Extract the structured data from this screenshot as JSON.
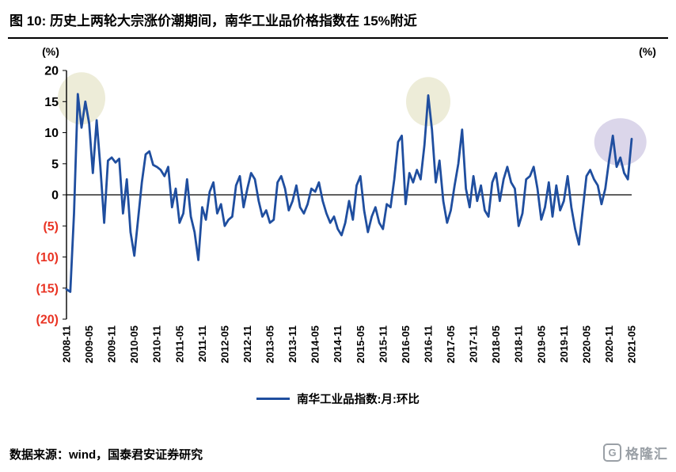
{
  "page": {
    "title": "图 10:  历史上两轮大宗涨价潮期间，南华工业品价格指数在 15%附近",
    "footer_source": "数据来源：wind，国泰君安证券研究",
    "logo": {
      "letter": "G",
      "text": "格隆汇"
    }
  },
  "legend": {
    "label": "南华工业品指数:月:环比"
  },
  "colors": {
    "line": "#1F4E9F",
    "negative_label": "#E93323",
    "positive_label": "#000000",
    "axis": "#000000",
    "highlight_beige": "#EDECD8",
    "highlight_purple": "#DBD6EA"
  },
  "chart_data": {
    "type": "line",
    "title": "历史上两轮大宗涨价潮期间，南华工业品价格指数在 15%附近",
    "unit_left": "(%)",
    "unit_right": "(%)",
    "freq": "monthly",
    "start_month": "2008-11",
    "end_month": "2021-05",
    "n_points": 151,
    "ylim": [
      -20,
      20
    ],
    "grid": false,
    "yticks": [
      {
        "value": 20,
        "label": "20"
      },
      {
        "value": 15,
        "label": "15"
      },
      {
        "value": 10,
        "label": "10"
      },
      {
        "value": 5,
        "label": "5"
      },
      {
        "value": 0,
        "label": "0"
      },
      {
        "value": -5,
        "label": "(5)"
      },
      {
        "value": -10,
        "label": "(10)"
      },
      {
        "value": -15,
        "label": "(15)"
      },
      {
        "value": -20,
        "label": "(20)"
      }
    ],
    "x_tick_every_months": 6,
    "x_tick_labels": [
      "2008-11",
      "2009-05",
      "2009-11",
      "2010-05",
      "2010-11",
      "2011-05",
      "2011-11",
      "2012-05",
      "2012-11",
      "2013-05",
      "2013-11",
      "2014-05",
      "2014-11",
      "2015-05",
      "2015-11",
      "2016-05",
      "2016-11",
      "2017-05",
      "2017-11",
      "2018-05",
      "2018-11",
      "2019-05",
      "2019-11",
      "2020-05",
      "2020-11",
      "2021-05"
    ],
    "series": [
      {
        "name": "南华工业品指数:月:环比",
        "color": "#1F4E9F",
        "values": [
          -15.2,
          -15.6,
          -3,
          16.2,
          10.8,
          15,
          11.5,
          3.5,
          12,
          4.5,
          -4.5,
          5.5,
          6,
          5.2,
          5.8,
          -3,
          2.5,
          -6,
          -9.8,
          -4,
          2,
          6.5,
          7,
          4.8,
          4.5,
          4,
          3,
          4.5,
          -2,
          1,
          -4.5,
          -3,
          2.5,
          -3.5,
          -6,
          -10.5,
          -2,
          -4,
          0.5,
          2,
          -3,
          -1.5,
          -5,
          -4,
          -3.5,
          1.5,
          3,
          -2,
          1,
          3.5,
          2.5,
          -1,
          -3.5,
          -2.5,
          -4.5,
          -4,
          2,
          3,
          1,
          -2.5,
          -1,
          1.5,
          -2,
          -3,
          -1.5,
          1,
          0.5,
          2,
          -1,
          -3,
          -4.5,
          -3.5,
          -5.5,
          -6.5,
          -4.5,
          -1,
          -4,
          1.5,
          3,
          -2.5,
          -6,
          -3.5,
          -2,
          -4.5,
          -5.5,
          -1.5,
          -2,
          2.5,
          8.5,
          9.5,
          -1.5,
          3.5,
          2,
          4,
          2.5,
          8,
          16,
          10.5,
          2,
          5.5,
          -1,
          -4.5,
          -2.5,
          1.5,
          5,
          10.5,
          1,
          -2,
          3,
          -1,
          1.5,
          -2.5,
          -3.5,
          2,
          3.5,
          -1,
          2.5,
          4.5,
          2,
          1,
          -5,
          -3,
          2.5,
          3,
          4.5,
          1,
          -4,
          -2,
          2,
          -3.5,
          1.5,
          -2.5,
          -1,
          3,
          -2,
          -5.5,
          -8,
          -2.5,
          3,
          4,
          2.5,
          1.5,
          -1.5,
          1,
          5.5,
          9.5,
          4.5,
          6,
          3.5,
          2.5,
          9
        ]
      }
    ],
    "highlights": [
      {
        "name": "surge-2009",
        "x_index": 4,
        "y": 15.5,
        "rx": 30,
        "ry": 33,
        "color": "#EDECD8"
      },
      {
        "name": "surge-2016",
        "x_index": 96,
        "y": 15,
        "rx": 28,
        "ry": 31,
        "color": "#EDECD8"
      },
      {
        "name": "current-2021",
        "x_index": 147,
        "y": 8.5,
        "rx": 33,
        "ry": 30,
        "color": "#DBD6EA"
      }
    ]
  }
}
